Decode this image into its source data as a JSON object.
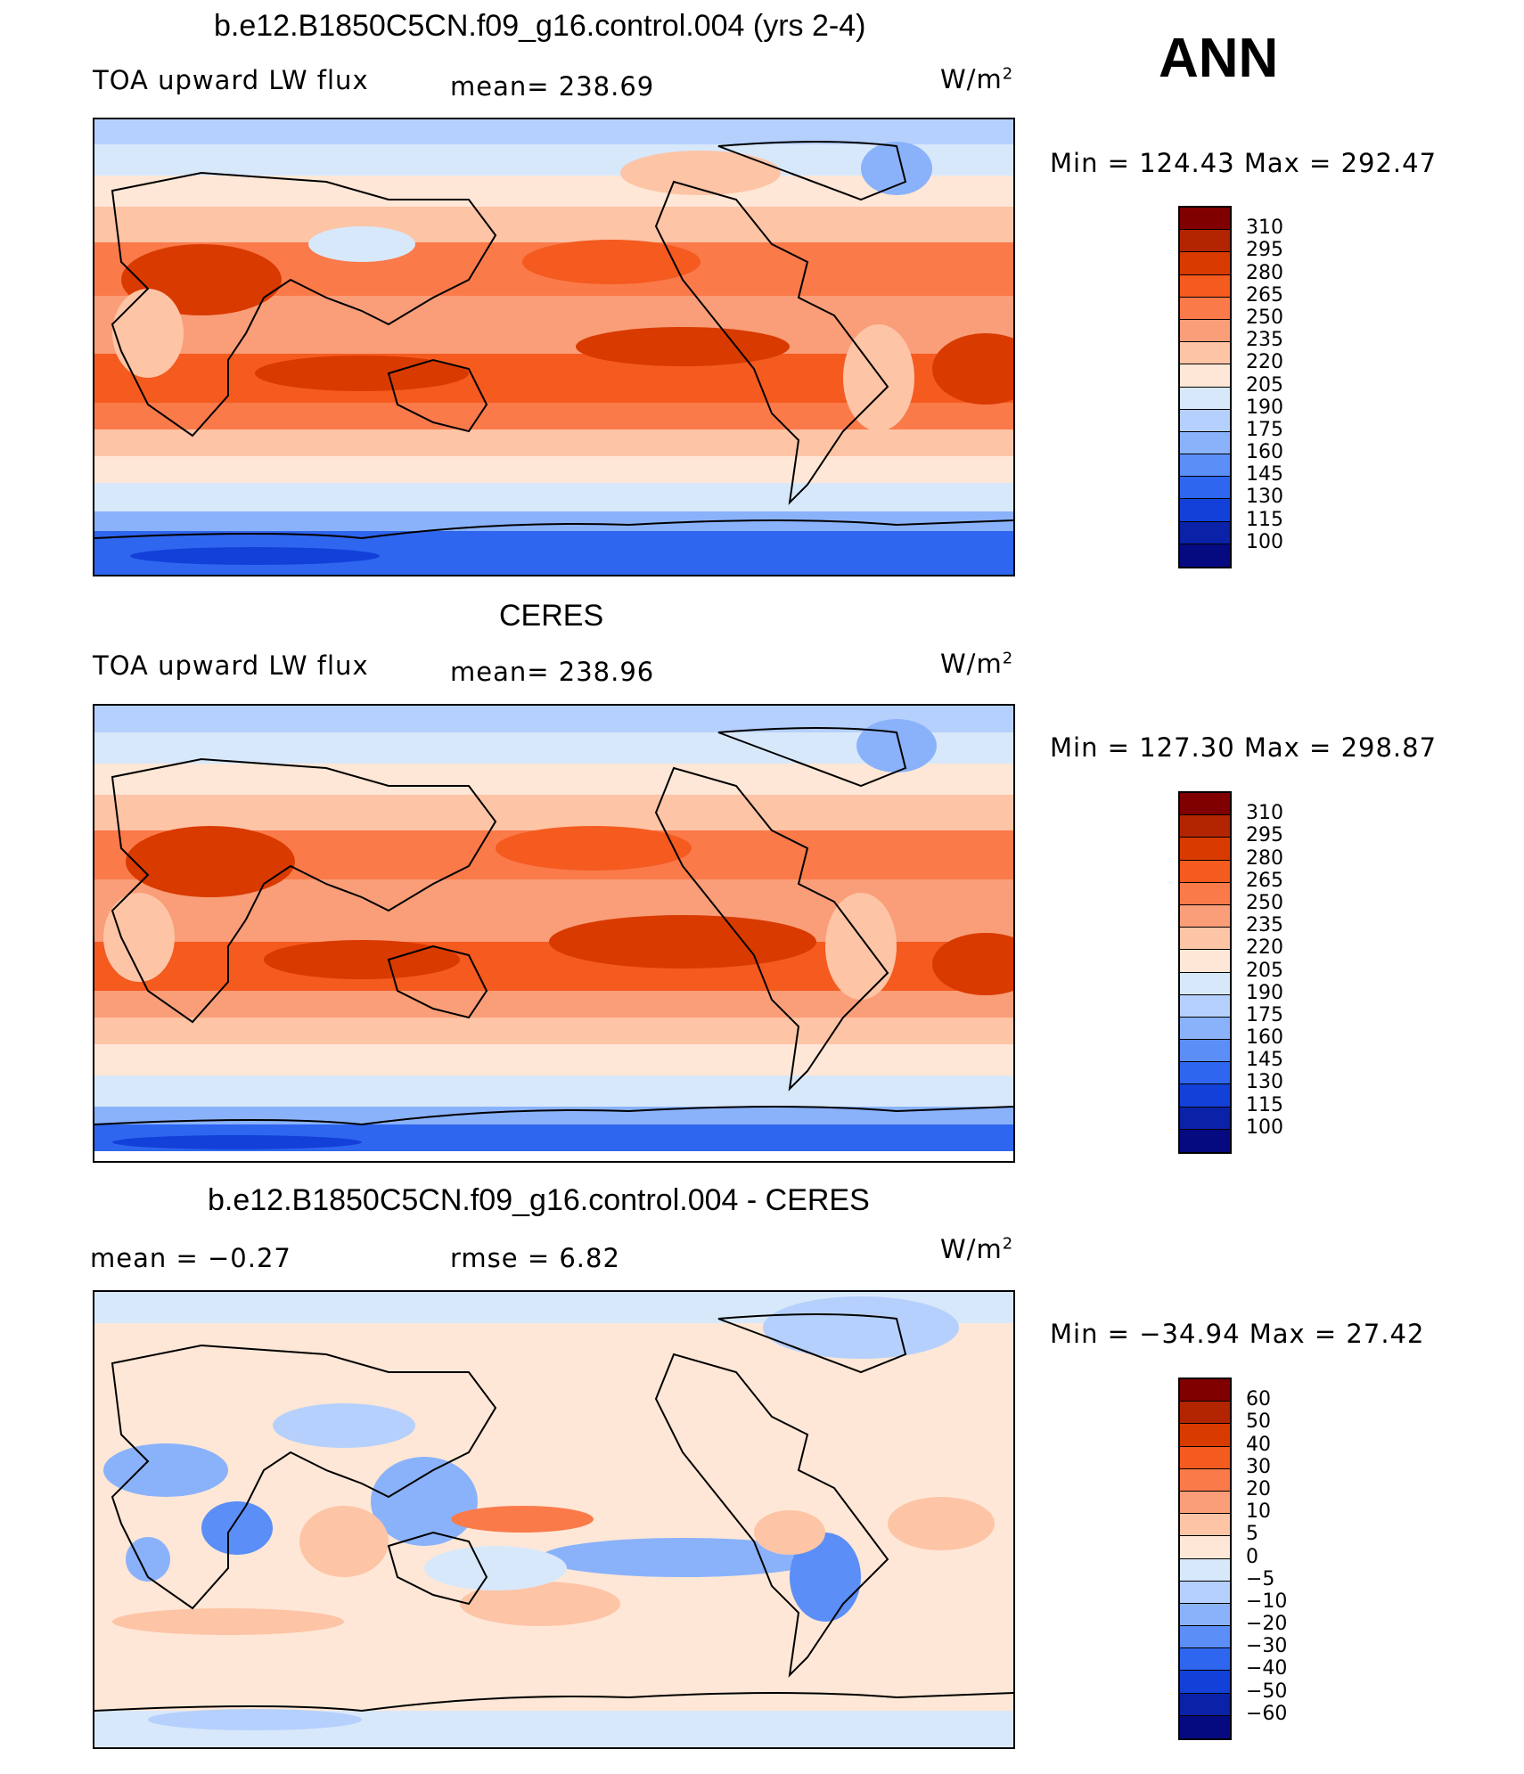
{
  "season": "ANN",
  "panels": [
    {
      "title": "b.e12.B1850C5CN.f09_g16.control.004 (yrs 2-4)",
      "left_label": "TOA upward LW flux",
      "center_label": "mean=  238.69",
      "units": "W/m",
      "units_sup": "2",
      "minmax": "Min  =  124.43  Max  =  292.47",
      "colorbar": {
        "colors": [
          "#800000",
          "#b32400",
          "#d93a00",
          "#f55a1f",
          "#fa7a4a",
          "#f99e78",
          "#fdc4a6",
          "#fee7d6",
          "#d8e8fb",
          "#b5d0fc",
          "#8ab2fb",
          "#5b8ef7",
          "#2f66ef",
          "#1240d8",
          "#0a22a8",
          "#050a80"
        ],
        "ticks": [
          "310",
          "295",
          "280",
          "265",
          "250",
          "235",
          "220",
          "205",
          "190",
          "175",
          "160",
          "145",
          "130",
          "115",
          "100"
        ]
      }
    },
    {
      "title": "CERES",
      "left_label": "TOA upward LW flux",
      "center_label": "mean=  238.96",
      "units": "W/m",
      "units_sup": "2",
      "minmax": "Min  =  127.30  Max  =  298.87",
      "colorbar": {
        "colors": [
          "#800000",
          "#b32400",
          "#d93a00",
          "#f55a1f",
          "#fa7a4a",
          "#f99e78",
          "#fdc4a6",
          "#fee7d6",
          "#d8e8fb",
          "#b5d0fc",
          "#8ab2fb",
          "#5b8ef7",
          "#2f66ef",
          "#1240d8",
          "#0a22a8",
          "#050a80"
        ],
        "ticks": [
          "310",
          "295",
          "280",
          "265",
          "250",
          "235",
          "220",
          "205",
          "190",
          "175",
          "160",
          "145",
          "130",
          "115",
          "100"
        ]
      }
    },
    {
      "title": "b.e12.B1850C5CN.f09_g16.control.004 - CERES",
      "left_label": "mean  =     −0.27",
      "center_label": "rmse  =      6.82",
      "units": "W/m",
      "units_sup": "2",
      "minmax": "Min  =  −34.94  Max  =    27.42",
      "colorbar": {
        "colors": [
          "#800000",
          "#b32400",
          "#d93a00",
          "#f55a1f",
          "#fa7a4a",
          "#f99e78",
          "#fdc4a6",
          "#fee7d6",
          "#d8e8fb",
          "#b5d0fc",
          "#8ab2fb",
          "#5b8ef7",
          "#2f66ef",
          "#1240d8",
          "#0a22a8",
          "#050a80"
        ],
        "ticks": [
          "60",
          "50",
          "40",
          "30",
          "20",
          "10",
          "5",
          "0",
          "−5",
          "−10",
          "−20",
          "−30",
          "−40",
          "−50",
          "−60"
        ]
      }
    }
  ]
}
